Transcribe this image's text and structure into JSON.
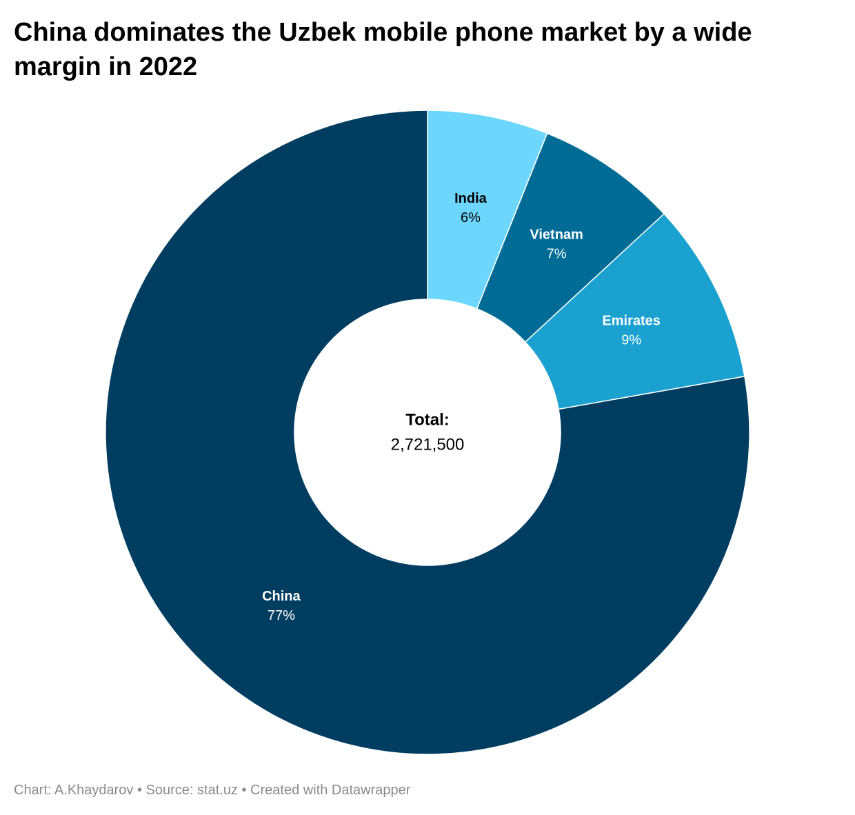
{
  "chart_data": {
    "type": "donut",
    "title": "China dominates the Uzbek mobile phone market by a wide margin in 2022",
    "categories": [
      "India",
      "Vietnam",
      "Emirates",
      "China"
    ],
    "values": [
      6,
      7,
      9,
      77
    ],
    "value_labels": [
      "6%",
      "7%",
      "9%",
      "77%"
    ],
    "colors": [
      "#6dd6fd",
      "#006c96",
      "#1aa1d0",
      "#003d61"
    ],
    "center_title": "Total:",
    "center_text": "2,721,500",
    "source": "Chart: A.Khaydarov • Source: stat.uz • Created with Datawrapper"
  }
}
